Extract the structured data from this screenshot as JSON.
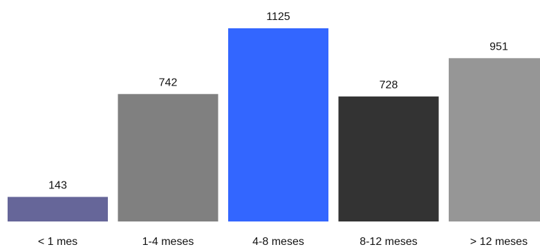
{
  "chart_data": {
    "type": "bar",
    "title": "",
    "xlabel": "",
    "ylabel": "",
    "categories": [
      "< 1 mes",
      "1-4 meses",
      "4-8 meses",
      "8-12 meses",
      "> 12 meses"
    ],
    "values": [
      143,
      742,
      1125,
      728,
      951
    ],
    "colors": [
      "#666699",
      "#808080",
      "#3366ff",
      "#333333",
      "#969696"
    ],
    "ylim": [
      0,
      1125
    ],
    "grid": false,
    "legend": "none"
  }
}
